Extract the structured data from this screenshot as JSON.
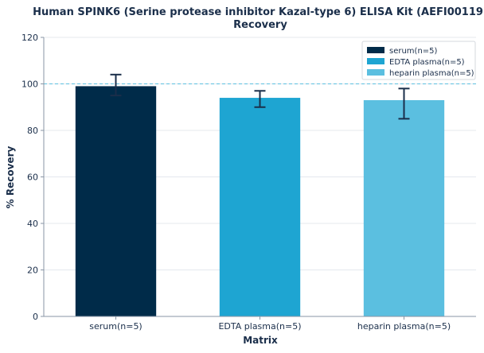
{
  "chart_data": {
    "type": "bar",
    "title": "Human SPINK6 (Serine protease inhibitor Kazal-type 6) ELISA Kit (AEFI00119)",
    "subtitle": "Recovery",
    "xlabel": "Matrix",
    "ylabel": "% Recovery",
    "ylim": [
      0,
      120
    ],
    "yticks": [
      0,
      20,
      40,
      60,
      80,
      100,
      120
    ],
    "categories": [
      "serum(n=5)",
      "EDTA plasma(n=5)",
      "heparin plasma(n=5)"
    ],
    "values": [
      99,
      94,
      93
    ],
    "errors": [
      [
        95,
        104
      ],
      [
        90,
        97
      ],
      [
        85,
        98
      ]
    ],
    "colors": [
      "#002b49",
      "#1ea5d2",
      "#5bbfe0"
    ],
    "reference_line": 100,
    "reference_color": "#5bbfe0",
    "legend_position": "top-right",
    "legend": [
      "serum(n=5)",
      "EDTA plasma(n=5)",
      "heparin plasma(n=5)"
    ],
    "grid": "horizontal"
  }
}
